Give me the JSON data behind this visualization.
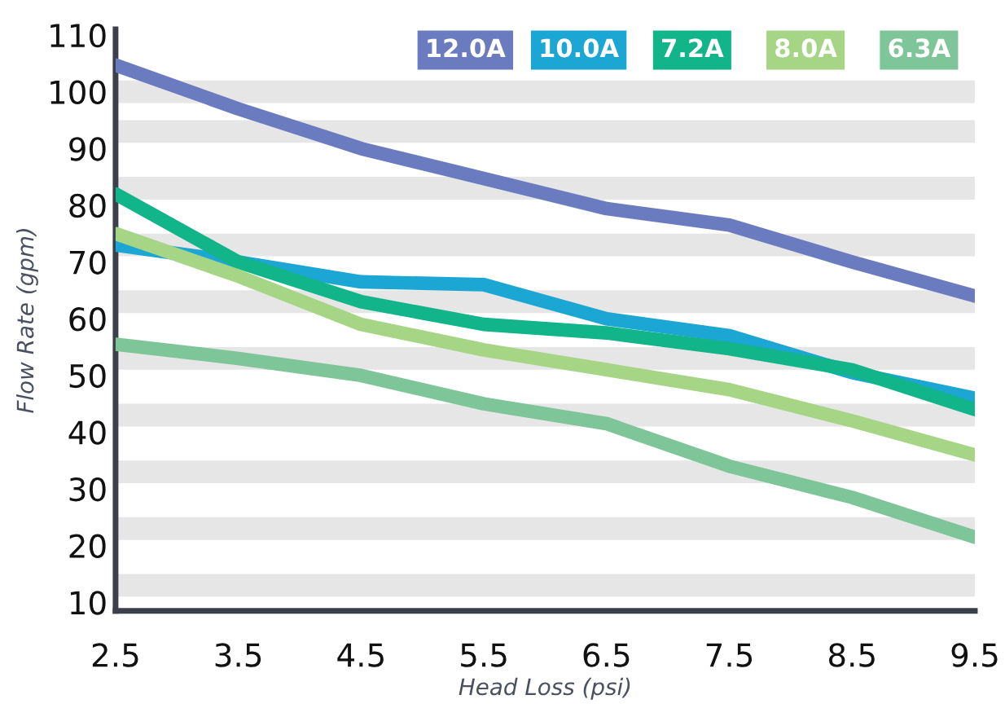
{
  "chart_data": {
    "type": "line",
    "xlabel": "Head Loss (psi)",
    "ylabel": "Flow Rate (gpm)",
    "x": [
      2.5,
      3.5,
      4.5,
      5.5,
      6.5,
      7.5,
      8.5,
      9.5
    ],
    "xlim": [
      2.5,
      9.5
    ],
    "xticks": [
      2.5,
      3.5,
      4.5,
      5.5,
      6.5,
      7.5,
      8.5,
      9.5
    ],
    "ylim": [
      8.5,
      111
    ],
    "yticks": [
      10,
      20,
      30,
      40,
      50,
      60,
      70,
      80,
      90,
      100,
      110
    ],
    "legend": "top right",
    "bands": [
      {
        "axis": "y",
        "from": 11,
        "to": 15,
        "color": "#e6e6e6"
      },
      {
        "axis": "y",
        "from": 21,
        "to": 25,
        "color": "#e6e6e6"
      },
      {
        "axis": "y",
        "from": 31,
        "to": 35,
        "color": "#e6e6e6"
      },
      {
        "axis": "y",
        "from": 41,
        "to": 45,
        "color": "#e6e6e6"
      },
      {
        "axis": "y",
        "from": 51,
        "to": 55,
        "color": "#e6e6e6"
      },
      {
        "axis": "y",
        "from": 61,
        "to": 65,
        "color": "#e6e6e6"
      },
      {
        "axis": "y",
        "from": 71,
        "to": 75,
        "color": "#e6e6e6"
      },
      {
        "axis": "y",
        "from": 81,
        "to": 85,
        "color": "#e6e6e6"
      },
      {
        "axis": "y",
        "from": 91,
        "to": 95,
        "color": "#e6e6e6"
      },
      {
        "axis": "y",
        "from": 98,
        "to": 102,
        "color": "#e6e6e6"
      }
    ],
    "marker": "none",
    "line_style": "solid",
    "series": [
      {
        "name": "12.0A",
        "color": "#6b7bbf",
        "values": [
          104.7,
          97,
          90,
          84.7,
          79.4,
          76.5,
          70,
          64
        ]
      },
      {
        "name": "10.0A",
        "color": "#1ba6d3",
        "values": [
          73,
          70,
          66.5,
          66,
          60,
          57,
          50.5,
          46
        ]
      },
      {
        "name": "7.2A",
        "color": "#12b48a",
        "values": [
          82,
          70,
          63,
          59,
          57.5,
          54.7,
          51,
          44
        ]
      },
      {
        "name": "8.0A",
        "color": "#a6d585",
        "values": [
          75,
          67.5,
          59,
          54.5,
          51,
          47.5,
          42,
          36
        ]
      },
      {
        "name": "6.3A",
        "color": "#7fc59a",
        "values": [
          55.5,
          53,
          50,
          45,
          41.5,
          34,
          28.5,
          21.5
        ]
      }
    ]
  }
}
